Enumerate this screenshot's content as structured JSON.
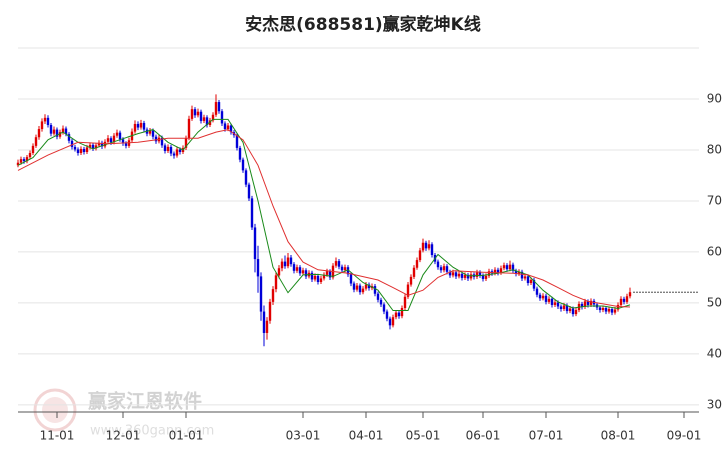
{
  "chart_data": {
    "type": "candlestick",
    "title": "安杰思(688581)赢家乾坤K线",
    "watermark": [
      "赢家江恩软件",
      "www.360gann.com"
    ],
    "up_color": "#e00000",
    "down_color": "#0000d8",
    "grid": true,
    "xlim": [
      -1,
      227
    ],
    "ylim": [
      28.6,
      100
    ],
    "yticks": [
      30,
      40,
      50,
      60,
      70,
      80,
      90
    ],
    "xticks": [
      {
        "value": 13,
        "label": "11-01"
      },
      {
        "value": 35,
        "label": "12-01"
      },
      {
        "value": 56,
        "label": "01-01"
      },
      {
        "value": 95,
        "label": "03-01"
      },
      {
        "value": 116,
        "label": "04-01"
      },
      {
        "value": 135,
        "label": "05-01"
      },
      {
        "value": 155,
        "label": "06-01"
      },
      {
        "value": 176,
        "label": "07-01"
      },
      {
        "value": 200,
        "label": "08-01"
      },
      {
        "value": 222,
        "label": "09-01"
      }
    ],
    "candles": [
      [
        77.0,
        78.1,
        76.6,
        77.5
      ],
      [
        77.5,
        78.7,
        77.1,
        78.2
      ],
      [
        78.2,
        78.6,
        77.3,
        77.8
      ],
      [
        77.8,
        79.0,
        77.4,
        78.6
      ],
      [
        78.6,
        79.9,
        78.2,
        79.4
      ],
      [
        79.4,
        81.3,
        79.0,
        80.8
      ],
      [
        80.8,
        83.0,
        80.4,
        82.5
      ],
      [
        82.5,
        84.7,
        82.0,
        84.1
      ],
      [
        84.1,
        86.2,
        83.6,
        85.6
      ],
      [
        85.6,
        87.0,
        85.1,
        86.3
      ],
      [
        86.3,
        86.8,
        84.4,
        84.9
      ],
      [
        84.9,
        85.3,
        82.7,
        83.2
      ],
      [
        83.2,
        84.6,
        82.8,
        84.0
      ],
      [
        84.0,
        84.4,
        82.1,
        82.6
      ],
      [
        82.6,
        84.0,
        82.2,
        83.5
      ],
      [
        83.5,
        84.8,
        83.0,
        84.2
      ],
      [
        84.2,
        84.6,
        82.7,
        83.1
      ],
      [
        83.1,
        83.5,
        81.3,
        81.8
      ],
      [
        81.8,
        82.2,
        80.1,
        80.6
      ],
      [
        80.6,
        81.0,
        79.7,
        80.1
      ],
      [
        80.1,
        80.5,
        78.9,
        79.4
      ],
      [
        79.4,
        80.7,
        79.0,
        80.2
      ],
      [
        80.2,
        80.6,
        79.1,
        79.6
      ],
      [
        79.6,
        81.0,
        79.2,
        80.5
      ],
      [
        80.5,
        81.5,
        80.1,
        81.0
      ],
      [
        81.0,
        81.4,
        79.8,
        80.3
      ],
      [
        80.3,
        81.4,
        79.9,
        80.9
      ],
      [
        80.9,
        81.9,
        80.5,
        81.4
      ],
      [
        81.4,
        81.8,
        80.2,
        80.7
      ],
      [
        80.7,
        82.1,
        80.3,
        81.6
      ],
      [
        81.6,
        82.9,
        81.2,
        82.3
      ],
      [
        82.3,
        82.7,
        81.0,
        81.5
      ],
      [
        81.5,
        83.3,
        81.1,
        82.8
      ],
      [
        82.8,
        84.0,
        82.4,
        83.4
      ],
      [
        83.4,
        83.8,
        81.6,
        82.1
      ],
      [
        82.1,
        82.5,
        80.8,
        81.3
      ],
      [
        81.3,
        81.7,
        80.3,
        80.8
      ],
      [
        80.8,
        82.4,
        80.4,
        81.9
      ],
      [
        81.9,
        84.2,
        81.5,
        83.6
      ],
      [
        83.6,
        85.8,
        83.2,
        85.1
      ],
      [
        85.1,
        85.6,
        83.9,
        84.4
      ],
      [
        84.4,
        85.9,
        84.0,
        85.3
      ],
      [
        85.3,
        85.7,
        83.5,
        84.0
      ],
      [
        84.0,
        84.4,
        82.7,
        83.2
      ],
      [
        83.2,
        84.3,
        82.8,
        83.8
      ],
      [
        83.8,
        84.2,
        82.1,
        82.6
      ],
      [
        82.6,
        83.0,
        81.2,
        81.7
      ],
      [
        81.7,
        82.9,
        81.3,
        82.4
      ],
      [
        82.4,
        82.8,
        80.4,
        80.9
      ],
      [
        80.9,
        81.3,
        79.3,
        79.8
      ],
      [
        79.8,
        81.1,
        79.4,
        80.6
      ],
      [
        80.6,
        81.0,
        78.8,
        79.3
      ],
      [
        79.3,
        79.7,
        78.3,
        78.9
      ],
      [
        78.9,
        80.6,
        78.5,
        80.1
      ],
      [
        80.1,
        80.5,
        79.1,
        79.6
      ],
      [
        79.6,
        80.9,
        79.2,
        80.4
      ],
      [
        80.4,
        82.8,
        80.0,
        82.3
      ],
      [
        82.3,
        86.7,
        81.9,
        86.1
      ],
      [
        86.1,
        88.7,
        85.7,
        88.0
      ],
      [
        88.0,
        88.4,
        86.3,
        86.8
      ],
      [
        86.8,
        88.1,
        86.4,
        87.5
      ],
      [
        87.5,
        87.9,
        85.2,
        85.7
      ],
      [
        85.7,
        86.9,
        85.3,
        86.4
      ],
      [
        86.4,
        86.8,
        84.4,
        84.9
      ],
      [
        84.9,
        86.3,
        84.5,
        85.8
      ],
      [
        85.8,
        87.4,
        85.4,
        86.9
      ],
      [
        86.9,
        90.9,
        86.5,
        89.4
      ],
      [
        89.4,
        89.8,
        87.1,
        87.6
      ],
      [
        87.6,
        88.0,
        84.7,
        85.2
      ],
      [
        85.2,
        85.6,
        83.6,
        84.1
      ],
      [
        84.1,
        85.3,
        83.7,
        84.8
      ],
      [
        84.8,
        85.2,
        83.0,
        83.5
      ],
      [
        83.5,
        83.9,
        82.4,
        82.9
      ],
      [
        82.9,
        83.3,
        79.9,
        80.4
      ],
      [
        80.4,
        80.8,
        77.6,
        78.1
      ],
      [
        78.1,
        78.5,
        75.5,
        76.0
      ],
      [
        76.0,
        76.4,
        72.7,
        73.2
      ],
      [
        73.2,
        73.6,
        70.0,
        70.5
      ],
      [
        70.5,
        71.0,
        64.3,
        64.8
      ],
      [
        64.8,
        65.5,
        56.0,
        58.6
      ],
      [
        58.6,
        61.2,
        52.0,
        55.2
      ],
      [
        55.2,
        56.0,
        46.5,
        48.3
      ],
      [
        48.3,
        49.5,
        41.5,
        44.1
      ],
      [
        44.1,
        47.2,
        42.8,
        46.5
      ],
      [
        46.5,
        50.8,
        45.9,
        50.2
      ],
      [
        50.2,
        53.3,
        49.6,
        52.7
      ],
      [
        52.7,
        56.0,
        52.1,
        55.4
      ],
      [
        55.4,
        57.4,
        54.8,
        56.8
      ],
      [
        56.8,
        58.7,
        56.2,
        58.1
      ],
      [
        58.1,
        59.3,
        56.7,
        57.2
      ],
      [
        57.2,
        59.8,
        56.8,
        58.9
      ],
      [
        58.9,
        59.4,
        57.1,
        57.6
      ],
      [
        57.6,
        58.0,
        55.8,
        56.3
      ],
      [
        56.3,
        57.5,
        55.9,
        57.0
      ],
      [
        57.0,
        57.4,
        55.3,
        55.8
      ],
      [
        55.8,
        56.9,
        55.4,
        56.4
      ],
      [
        56.4,
        56.8,
        54.7,
        55.2
      ],
      [
        55.2,
        56.4,
        54.8,
        55.9
      ],
      [
        55.9,
        56.3,
        54.1,
        54.6
      ],
      [
        54.6,
        55.8,
        54.2,
        55.3
      ],
      [
        55.3,
        55.7,
        53.6,
        54.1
      ],
      [
        54.1,
        55.3,
        53.7,
        54.8
      ],
      [
        54.8,
        56.0,
        54.4,
        55.5
      ],
      [
        55.5,
        56.7,
        55.1,
        56.2
      ],
      [
        56.2,
        56.6,
        54.5,
        55.0
      ],
      [
        55.0,
        57.8,
        54.6,
        57.3
      ],
      [
        57.3,
        58.9,
        56.9,
        58.2
      ],
      [
        58.2,
        58.6,
        56.6,
        57.1
      ],
      [
        57.1,
        57.5,
        55.9,
        56.4
      ],
      [
        56.4,
        57.5,
        56.0,
        57.0
      ],
      [
        57.0,
        57.4,
        55.1,
        55.6
      ],
      [
        55.6,
        56.0,
        53.3,
        53.8
      ],
      [
        53.8,
        54.2,
        52.1,
        52.6
      ],
      [
        52.6,
        53.9,
        52.2,
        53.4
      ],
      [
        53.4,
        53.8,
        51.6,
        52.1
      ],
      [
        52.1,
        53.3,
        51.7,
        52.8
      ],
      [
        52.8,
        54.1,
        52.4,
        53.6
      ],
      [
        53.6,
        54.0,
        52.4,
        52.9
      ],
      [
        52.9,
        53.8,
        52.5,
        53.3
      ],
      [
        53.3,
        53.7,
        51.3,
        51.8
      ],
      [
        51.8,
        52.2,
        50.1,
        50.6
      ],
      [
        50.6,
        51.0,
        49.2,
        49.7
      ],
      [
        49.7,
        50.1,
        47.8,
        48.3
      ],
      [
        48.3,
        48.7,
        46.4,
        46.9
      ],
      [
        46.9,
        47.3,
        44.8,
        45.6
      ],
      [
        45.6,
        47.7,
        45.2,
        47.2
      ],
      [
        47.2,
        48.6,
        46.8,
        48.1
      ],
      [
        48.1,
        48.5,
        46.9,
        47.4
      ],
      [
        47.4,
        49.5,
        47.0,
        49.0
      ],
      [
        49.0,
        51.7,
        48.6,
        51.2
      ],
      [
        51.2,
        54.1,
        50.8,
        53.6
      ],
      [
        53.6,
        55.6,
        53.2,
        55.1
      ],
      [
        55.1,
        57.4,
        54.7,
        56.9
      ],
      [
        56.9,
        58.9,
        56.5,
        58.4
      ],
      [
        58.4,
        60.8,
        58.0,
        60.3
      ],
      [
        60.3,
        62.6,
        59.9,
        61.8
      ],
      [
        61.8,
        62.2,
        60.2,
        60.7
      ],
      [
        60.7,
        62.3,
        60.3,
        61.5
      ],
      [
        61.5,
        61.9,
        58.9,
        59.4
      ],
      [
        59.4,
        59.8,
        57.6,
        58.1
      ],
      [
        58.1,
        58.5,
        56.5,
        57.0
      ],
      [
        57.0,
        57.4,
        55.9,
        56.4
      ],
      [
        56.4,
        57.7,
        56.0,
        57.2
      ],
      [
        57.2,
        57.6,
        55.6,
        56.1
      ],
      [
        56.1,
        56.5,
        54.9,
        55.4
      ],
      [
        55.4,
        56.5,
        55.0,
        56.0
      ],
      [
        56.0,
        56.4,
        54.7,
        55.2
      ],
      [
        55.2,
        56.2,
        54.8,
        55.7
      ],
      [
        55.7,
        56.1,
        54.4,
        54.9
      ],
      [
        54.9,
        56.0,
        54.5,
        55.5
      ],
      [
        55.5,
        55.9,
        54.3,
        54.8
      ],
      [
        54.8,
        56.1,
        54.4,
        55.6
      ],
      [
        55.6,
        56.0,
        54.6,
        55.1
      ],
      [
        55.1,
        56.5,
        54.7,
        56.0
      ],
      [
        56.0,
        56.4,
        54.9,
        55.4
      ],
      [
        55.4,
        55.8,
        54.2,
        54.7
      ],
      [
        54.7,
        55.8,
        54.3,
        55.3
      ],
      [
        55.3,
        56.7,
        54.9,
        56.2
      ],
      [
        56.2,
        56.6,
        55.3,
        55.8
      ],
      [
        55.8,
        57.0,
        55.4,
        56.5
      ],
      [
        56.5,
        56.9,
        55.4,
        55.9
      ],
      [
        55.9,
        57.3,
        55.5,
        56.8
      ],
      [
        56.8,
        57.9,
        56.4,
        57.4
      ],
      [
        57.4,
        57.8,
        56.1,
        56.6
      ],
      [
        56.6,
        58.3,
        56.2,
        57.5
      ],
      [
        57.5,
        57.9,
        55.8,
        56.3
      ],
      [
        56.3,
        56.7,
        55.2,
        55.7
      ],
      [
        55.7,
        56.6,
        55.3,
        56.1
      ],
      [
        56.1,
        56.5,
        54.3,
        54.8
      ],
      [
        54.8,
        55.7,
        54.4,
        55.2
      ],
      [
        55.2,
        55.6,
        53.4,
        53.9
      ],
      [
        53.9,
        55.0,
        53.5,
        54.5
      ],
      [
        54.5,
        54.9,
        52.3,
        52.8
      ],
      [
        52.8,
        53.2,
        51.1,
        51.6
      ],
      [
        51.6,
        52.0,
        50.4,
        50.9
      ],
      [
        50.9,
        51.9,
        50.5,
        51.4
      ],
      [
        51.4,
        51.8,
        49.7,
        50.2
      ],
      [
        50.2,
        51.3,
        49.8,
        50.8
      ],
      [
        50.8,
        51.2,
        49.1,
        49.6
      ],
      [
        49.6,
        50.6,
        49.2,
        50.1
      ],
      [
        50.1,
        50.5,
        48.8,
        49.3
      ],
      [
        49.3,
        49.7,
        48.3,
        48.8
      ],
      [
        48.8,
        50.0,
        48.4,
        49.5
      ],
      [
        49.5,
        49.9,
        47.9,
        48.4
      ],
      [
        48.4,
        49.4,
        48.0,
        48.9
      ],
      [
        48.9,
        49.3,
        47.3,
        47.8
      ],
      [
        47.8,
        49.1,
        47.4,
        48.6
      ],
      [
        48.6,
        50.3,
        48.2,
        49.8
      ],
      [
        49.8,
        50.2,
        48.7,
        49.2
      ],
      [
        49.2,
        50.8,
        48.8,
        50.3
      ],
      [
        50.3,
        50.7,
        49.1,
        49.6
      ],
      [
        49.6,
        50.9,
        49.2,
        50.4
      ],
      [
        50.4,
        50.8,
        49.2,
        49.7
      ],
      [
        49.7,
        50.1,
        48.6,
        49.1
      ],
      [
        49.1,
        49.5,
        48.1,
        48.6
      ],
      [
        48.6,
        49.5,
        48.2,
        49.0
      ],
      [
        49.0,
        49.4,
        47.8,
        48.3
      ],
      [
        48.3,
        49.3,
        47.9,
        48.8
      ],
      [
        48.8,
        49.2,
        47.6,
        48.1
      ],
      [
        48.1,
        49.2,
        47.7,
        48.7
      ],
      [
        48.7,
        50.1,
        48.3,
        49.6
      ],
      [
        49.6,
        51.3,
        49.2,
        50.8
      ],
      [
        50.8,
        51.2,
        49.7,
        50.2
      ],
      [
        50.2,
        51.8,
        49.8,
        51.3
      ],
      [
        51.3,
        53.0,
        50.9,
        52.1
      ]
    ],
    "series": [
      {
        "color": "#1a8a1a",
        "x": [
          0,
          5,
          10,
          15,
          20,
          25,
          30,
          35,
          40,
          45,
          50,
          55,
          60,
          65,
          70,
          75,
          80,
          85,
          90,
          95,
          100,
          105,
          110,
          115,
          120,
          125,
          130,
          135,
          140,
          145,
          150,
          155,
          160,
          165,
          170,
          175,
          180,
          185,
          190,
          195,
          200,
          204
        ],
        "values": [
          77,
          78.5,
          82,
          83.5,
          81.5,
          80.2,
          81.2,
          82.2,
          83.2,
          84,
          81.5,
          80,
          83.5,
          86,
          86,
          81.5,
          70,
          57,
          52,
          55.5,
          55.6,
          55.2,
          56.5,
          54,
          52.5,
          48.5,
          48.5,
          55.5,
          59.5,
          57,
          55.3,
          55.4,
          55.8,
          56.5,
          55.5,
          52.5,
          50.2,
          49,
          49.4,
          49.4,
          48.9,
          49.6
        ]
      },
      {
        "color": "#e03030",
        "x": [
          0,
          10,
          20,
          30,
          40,
          50,
          60,
          66,
          70,
          75,
          80,
          85,
          90,
          95,
          100,
          110,
          120,
          125,
          130,
          135,
          140,
          145,
          155,
          165,
          170,
          175,
          180,
          185,
          190,
          195,
          200,
          204
        ],
        "values": [
          76,
          79,
          81.5,
          81.2,
          81.5,
          82.3,
          82.3,
          83.5,
          84,
          82,
          77,
          69,
          62,
          58,
          56.5,
          55.8,
          54.5,
          53,
          51.5,
          52.5,
          55,
          56.3,
          56,
          55.8,
          55.5,
          54.5,
          53,
          51.5,
          50.3,
          49.8,
          49.3,
          49.2
        ]
      }
    ]
  }
}
